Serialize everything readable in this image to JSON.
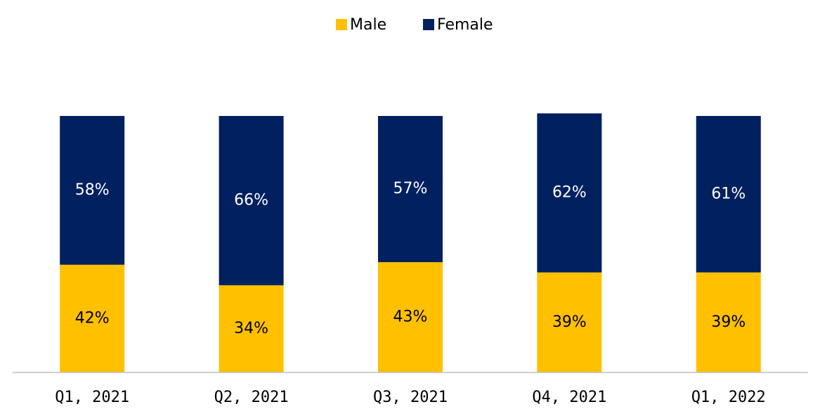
{
  "chart_data": {
    "type": "stacked_bar",
    "categories": [
      "Q1, 2021",
      "Q2, 2021",
      "Q3, 2021",
      "Q4, 2021",
      "Q1, 2022"
    ],
    "series": [
      {
        "name": "Male",
        "color": "#ffc000",
        "values": [
          42,
          34,
          43,
          39,
          39
        ],
        "value_labels": [
          "42%",
          "34%",
          "43%",
          "39%",
          "39%"
        ]
      },
      {
        "name": "Female",
        "color": "#002060",
        "values": [
          58,
          66,
          57,
          62,
          61
        ],
        "value_labels": [
          "58%",
          "66%",
          "57%",
          "62%",
          "61%"
        ]
      }
    ],
    "legend": "top"
  }
}
